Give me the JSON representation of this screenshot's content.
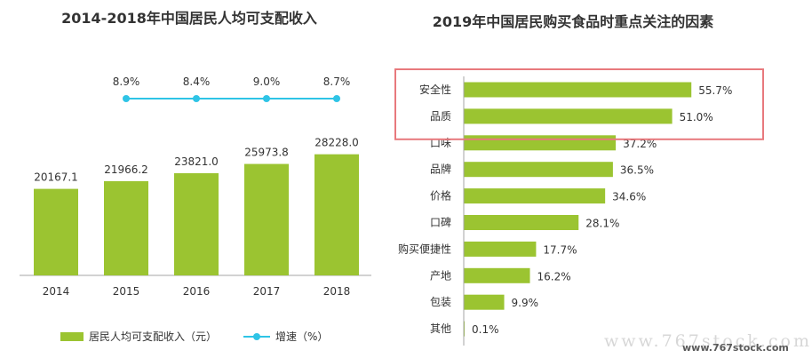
{
  "colors": {
    "bar": "#9bc431",
    "line": "#2fc4e6",
    "highlight_box": "#e8797d",
    "text": "#333333",
    "axis": "#a6a6a6"
  },
  "left_chart": {
    "title": "2014-2018年中国居民人均可支配收入",
    "legend": {
      "bar_label": "居民人均可支配收入（元）",
      "line_label": "增速（%）"
    },
    "chart_data": {
      "type": "bar",
      "categories": [
        "2014",
        "2015",
        "2016",
        "2017",
        "2018"
      ],
      "series": [
        {
          "name": "居民人均可支配收入（元）",
          "values": [
            20167.1,
            21966.2,
            23821.0,
            25973.8,
            28228.0
          ],
          "labels": [
            "20167.1",
            "21966.2",
            "23821.0",
            "25973.8",
            "28228.0"
          ]
        },
        {
          "name": "增速（%）",
          "type": "line",
          "x": [
            "2015",
            "2016",
            "2017",
            "2018"
          ],
          "values": [
            8.9,
            8.4,
            9.0,
            8.7
          ],
          "labels": [
            "8.9%",
            "8.4%",
            "9.0%",
            "8.7%"
          ]
        }
      ]
    }
  },
  "right_chart": {
    "title": "2019年中国居民购买食品时重点关注的因素",
    "chart_data": {
      "type": "bar",
      "orientation": "horizontal",
      "categories": [
        "安全性",
        "品质",
        "口味",
        "品牌",
        "价格",
        "口碑",
        "购买便捷性",
        "产地",
        "包装",
        "其他"
      ],
      "values": [
        55.7,
        51.0,
        37.2,
        36.5,
        34.6,
        28.1,
        17.7,
        16.2,
        9.9,
        0.1
      ],
      "labels": [
        "55.7%",
        "51.0%",
        "37.2%",
        "36.5%",
        "34.6%",
        "28.1%",
        "17.7%",
        "16.2%",
        "9.9%",
        "0.1%"
      ],
      "highlighted": [
        "安全性",
        "品质"
      ]
    }
  },
  "watermark": {
    "text": "www.767stock.com",
    "badge": "www.767stock.com"
  }
}
